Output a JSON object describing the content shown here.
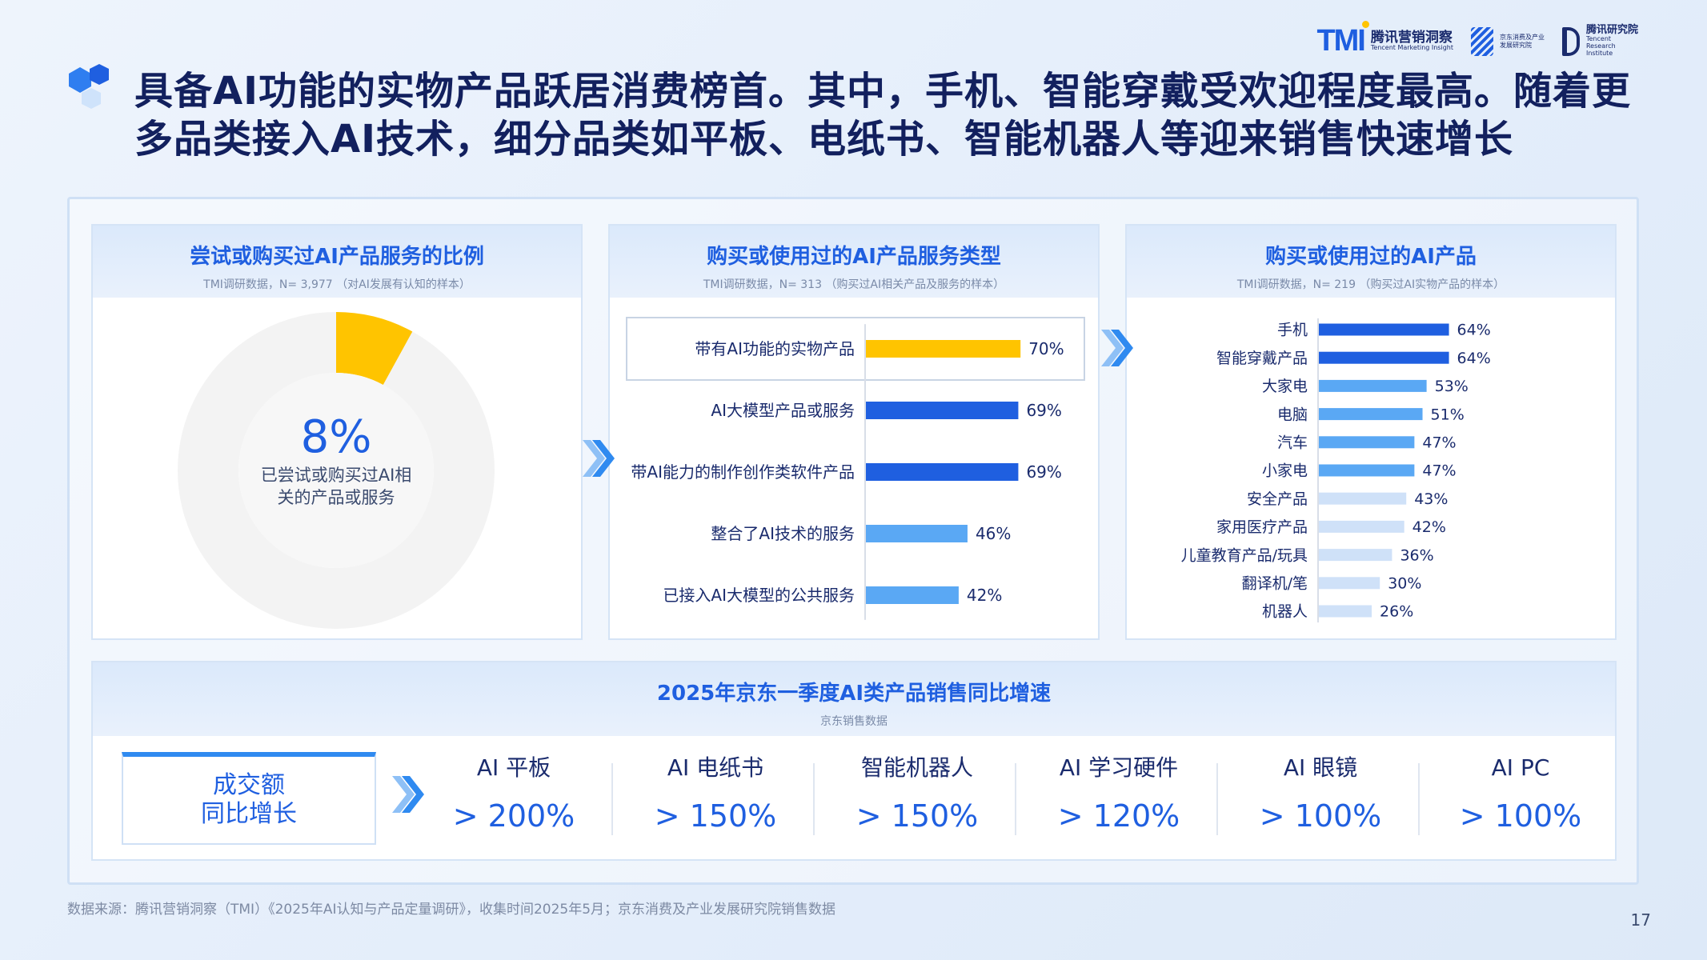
{
  "logos": {
    "tmi": {
      "mark": "TMI",
      "name": "腾讯营销洞察",
      "sub": "Tencent Marketing Insight"
    },
    "jd": {
      "name": "京东消费及产业发展研究院"
    },
    "tencent_research": {
      "name": "腾讯研究院",
      "sub": "Tencent Research Institute"
    }
  },
  "title": "具备AI功能的实物产品跃居消费榜首。其中，手机、智能穿戴受欢迎程度最高。随着更多品类接入AI技术，细分品类如平板、电纸书、智能机器人等迎来销售快速增长",
  "colors": {
    "yellow": "#ffc400",
    "blue": "#1f5fe0",
    "mid_blue": "#5aa8f4",
    "light_blue": "#a9ccf6",
    "pale_blue": "#cfe1f8",
    "donut_bg": "#f3f3f3"
  },
  "panel1": {
    "title": "尝试或购买过AI产品服务的比例",
    "subtitle": "TMI调研数据，N= 3,977 （对AI发展有认知的样本）",
    "value": "8%",
    "label_line1": "已尝试或购买过AI相",
    "label_line2": "关的产品或服务"
  },
  "panel2": {
    "title": "购买或使用过的AI产品服务类型",
    "subtitle": "TMI调研数据，N= 313 （购买过AI相关产品及服务的样本）"
  },
  "panel3": {
    "title": "购买或使用过的AI产品",
    "subtitle": "TMI调研数据，N= 219 （购买过AI实物产品的样本）"
  },
  "panel4": {
    "title": "2025年京东一季度AI类产品销售同比增速",
    "subtitle": "京东销售数据",
    "metric_line1": "成交额",
    "metric_line2": "同比增长",
    "items": [
      {
        "name": "AI 平板",
        "value": "> 200%"
      },
      {
        "name": "AI 电纸书",
        "value": "> 150%"
      },
      {
        "name": "智能机器人",
        "value": "> 150%"
      },
      {
        "name": "AI 学习硬件",
        "value": "> 120%"
      },
      {
        "name": "AI 眼镜",
        "value": "> 100%"
      },
      {
        "name": "AI PC",
        "value": "> 100%"
      }
    ]
  },
  "chart_data": [
    {
      "type": "pie",
      "title": "尝试或购买过AI产品服务的比例",
      "slices": [
        {
          "label": "已尝试或购买过AI相关的产品或服务",
          "value": 8
        },
        {
          "label": "",
          "value": 92
        }
      ]
    },
    {
      "type": "bar",
      "title": "购买或使用过的AI产品服务类型",
      "categories": [
        "带有AI功能的实物产品",
        "AI大模型产品或服务",
        "带AI能力的制作创作类软件产品",
        "整合了AI技术的服务",
        "已接入AI大模型的公共服务"
      ],
      "values": [
        70,
        69,
        69,
        46,
        42
      ],
      "value_labels": [
        "70%",
        "69%",
        "69%",
        "46%",
        "42%"
      ],
      "colors": [
        "#ffc400",
        "#1f5fe0",
        "#1f5fe0",
        "#5aa8f4",
        "#5aa8f4"
      ],
      "highlight": "带有AI功能的实物产品",
      "ylim": [
        0,
        100
      ]
    },
    {
      "type": "bar",
      "title": "购买或使用过的AI产品",
      "categories": [
        "手机",
        "智能穿戴产品",
        "大家电",
        "电脑",
        "汽车",
        "小家电",
        "安全产品",
        "家用医疗产品",
        "儿童教育产品/玩具",
        "翻译机/笔",
        "机器人"
      ],
      "values": [
        64,
        64,
        53,
        51,
        47,
        47,
        43,
        42,
        36,
        30,
        26
      ],
      "value_labels": [
        "64%",
        "64%",
        "53%",
        "51%",
        "47%",
        "47%",
        "43%",
        "42%",
        "36%",
        "30%",
        "26%"
      ],
      "colors": [
        "#1f5fe0",
        "#1f5fe0",
        "#5aa8f4",
        "#5aa8f4",
        "#5aa8f4",
        "#5aa8f4",
        "#cfe1f8",
        "#cfe1f8",
        "#cfe1f8",
        "#cfe1f8",
        "#cfe1f8"
      ],
      "ylim": [
        0,
        100
      ]
    }
  ],
  "footer": "数据来源：腾讯营销洞察（TMI）《2025年AI认知与产品定量调研》，收集时间2025年5月；京东消费及产业发展研究院销售数据",
  "page_number": "17"
}
